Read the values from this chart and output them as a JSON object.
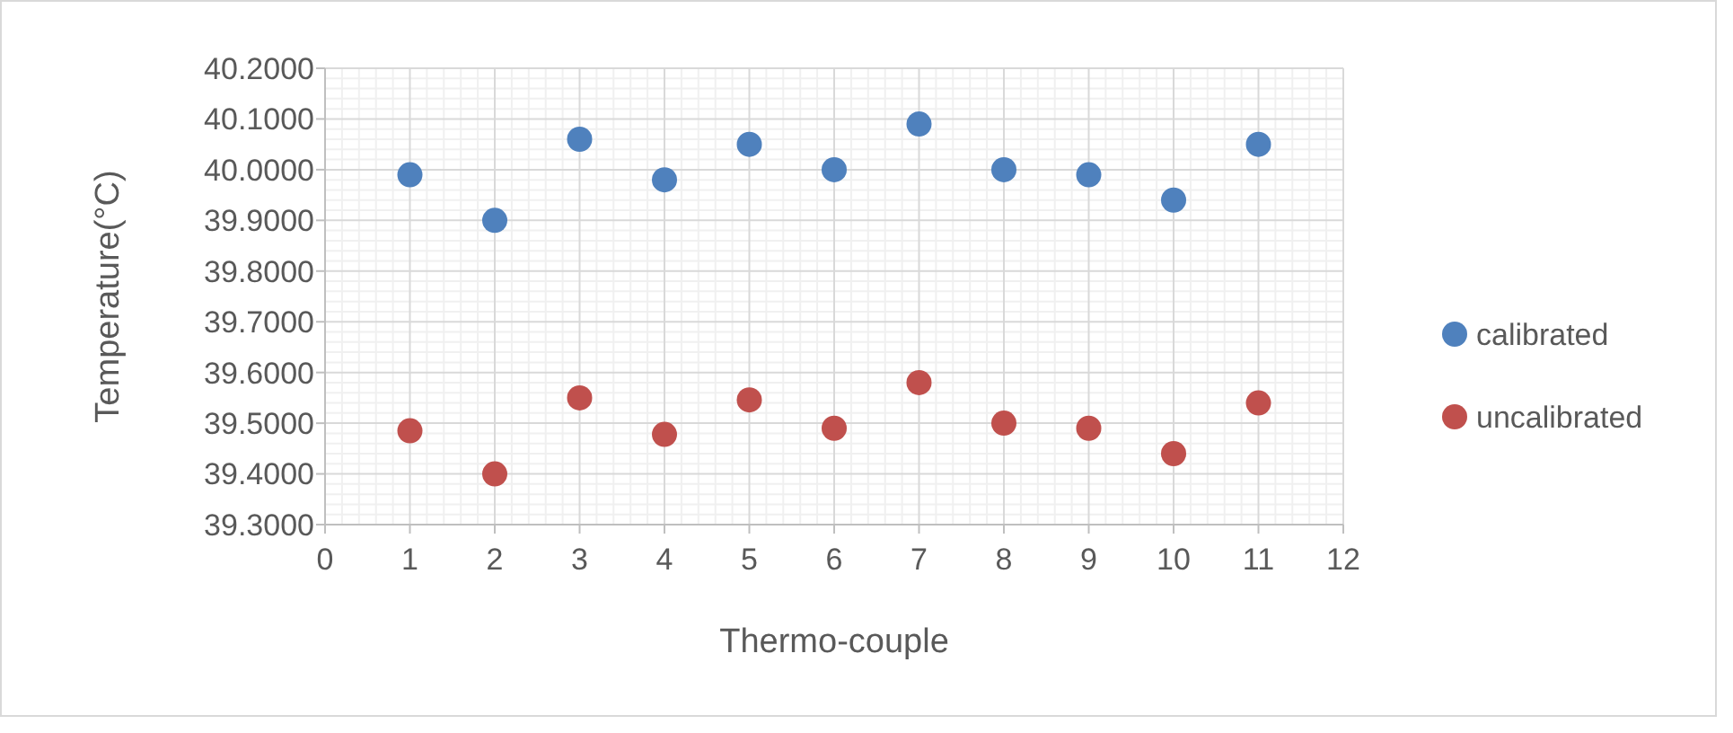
{
  "chart_data": {
    "type": "scatter",
    "xlabel": "Thermo-couple",
    "ylabel": "Temperature(°C)",
    "x": [
      1,
      2,
      3,
      4,
      5,
      6,
      7,
      8,
      9,
      10,
      11
    ],
    "series": [
      {
        "name": "calibrated",
        "color": "#4f81bd",
        "values": [
          39.99,
          39.9,
          40.06,
          39.98,
          40.05,
          40.0,
          40.09,
          40.0,
          39.99,
          39.94,
          40.05
        ]
      },
      {
        "name": "uncalibrated",
        "color": "#c0504d",
        "values": [
          39.485,
          39.4,
          39.55,
          39.478,
          39.546,
          39.49,
          39.58,
          39.5,
          39.49,
          39.44,
          39.54
        ]
      }
    ],
    "xlim": [
      0,
      12
    ],
    "xticks": [
      0,
      1,
      2,
      3,
      4,
      5,
      6,
      7,
      8,
      9,
      10,
      11,
      12
    ],
    "ylim": [
      39.3,
      40.2
    ],
    "yticks": [
      {
        "value": 39.3,
        "label": "39.3000"
      },
      {
        "value": 39.4,
        "label": "39.4000"
      },
      {
        "value": 39.5,
        "label": "39.5000"
      },
      {
        "value": 39.6,
        "label": "39.6000"
      },
      {
        "value": 39.7,
        "label": "39.7000"
      },
      {
        "value": 39.8,
        "label": "39.8000"
      },
      {
        "value": 39.9,
        "label": "39.9000"
      },
      {
        "value": 40.0,
        "label": "40.0000"
      },
      {
        "value": 40.1,
        "label": "40.1000"
      },
      {
        "value": 40.2,
        "label": "40.2000"
      }
    ],
    "grid": true,
    "legend": "right",
    "marker": "circle"
  }
}
